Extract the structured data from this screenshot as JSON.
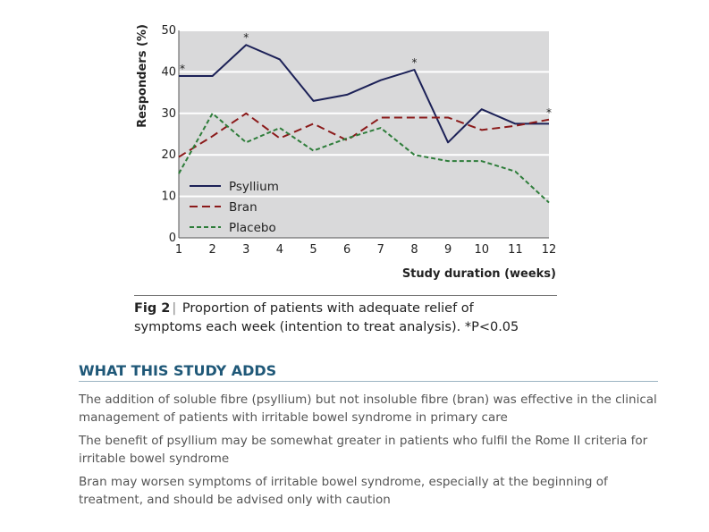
{
  "chart_data": {
    "type": "line",
    "x": [
      1,
      2,
      3,
      4,
      5,
      6,
      7,
      8,
      9,
      10,
      11,
      12
    ],
    "xlabel": "Study duration (weeks)",
    "ylabel": "Responders (%)",
    "ylim": [
      0,
      50
    ],
    "xlim": [
      1,
      12
    ],
    "yticks": [
      0,
      10,
      20,
      30,
      40,
      50
    ],
    "grid": true,
    "legend_position": "lower-left",
    "series": [
      {
        "name": "Psyllium",
        "style": "solid",
        "color": "#1c2157",
        "values": [
          39,
          39,
          46.5,
          43,
          33,
          34.5,
          38,
          40.5,
          23,
          31,
          27.5,
          27.5
        ]
      },
      {
        "name": "Bran",
        "style": "dashed",
        "color": "#8b1a1a",
        "values": [
          19.5,
          24.5,
          30,
          24,
          27.5,
          23.5,
          29,
          29,
          29,
          26,
          27,
          28.5
        ]
      },
      {
        "name": "Placebo",
        "style": "dotted-dash",
        "color": "#2e7d3a",
        "values": [
          15.5,
          30,
          23,
          26.5,
          21,
          24,
          26.5,
          20,
          18.5,
          18.5,
          16,
          8.5
        ]
      }
    ],
    "significance": {
      "marker": "*",
      "weeks": [
        1,
        3,
        8,
        12
      ]
    }
  },
  "caption": {
    "fig": "Fig 2",
    "text_line1": "Proportion of patients with adequate relief of",
    "text_line2": "symptoms each week (intention to treat analysis). *P<0.05"
  },
  "section": {
    "title": "WHAT THIS STUDY ADDS",
    "points": [
      "The addition of soluble fibre (psyllium) but not insoluble fibre (bran) was effective in the clinical management of patients with irritable bowel syndrome in primary care",
      "The benefit of psyllium may be somewhat greater in patients who fulfil the Rome II criteria for irritable bowel syndrome",
      "Bran may worsen symptoms of irritable bowel syndrome, especially at the beginning of treatment, and should be advised only with caution"
    ]
  }
}
